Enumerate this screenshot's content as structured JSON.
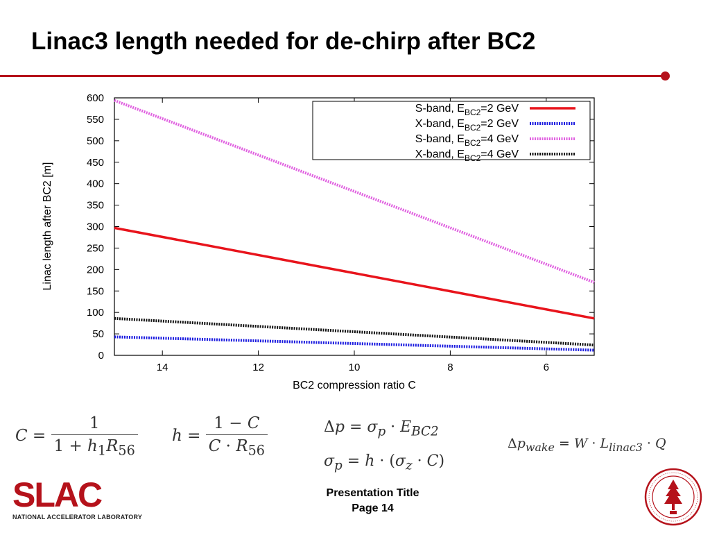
{
  "slide": {
    "title": "Linac3 length needed for de-chirp after BC2",
    "footer_line1": "Presentation Title",
    "footer_line2": "Page 14",
    "accent_color": "#b5121b"
  },
  "logo": {
    "letters": "SLAC",
    "subtitle": "NATIONAL ACCELERATOR LABORATORY"
  },
  "chart_data": {
    "type": "line",
    "xlabel": "BC2 compression ratio C",
    "ylabel": "Linac length after BC2 [m]",
    "xlim": [
      15,
      5
    ],
    "ylim": [
      0,
      600
    ],
    "x_ticks": [
      14,
      12,
      10,
      8,
      6
    ],
    "y_ticks": [
      0,
      50,
      100,
      150,
      200,
      250,
      300,
      350,
      400,
      450,
      500,
      550,
      600
    ],
    "grid": false,
    "legend_position": "top-right",
    "series": [
      {
        "name_prefix": "S-band, E",
        "name_sub": "BC2",
        "name_suffix": "=2 GeV",
        "color": "#e8141c",
        "style": "solid",
        "x": [
          15,
          5
        ],
        "y": [
          297,
          86
        ]
      },
      {
        "name_prefix": "X-band, E",
        "name_sub": "BC2",
        "name_suffix": "=2 GeV",
        "color": "#1a1adf",
        "style": "dotted",
        "x": [
          15,
          5
        ],
        "y": [
          43,
          12
        ]
      },
      {
        "name_prefix": "S-band, E",
        "name_sub": "BC2",
        "name_suffix": "=4 GeV",
        "color": "#e060e0",
        "style": "dotted",
        "x": [
          15,
          5
        ],
        "y": [
          594,
          170
        ]
      },
      {
        "name_prefix": "X-band, E",
        "name_sub": "BC2",
        "name_suffix": "=4 GeV",
        "color": "#111111",
        "style": "dotted",
        "x": [
          15,
          5
        ],
        "y": [
          86,
          24
        ]
      }
    ]
  }
}
